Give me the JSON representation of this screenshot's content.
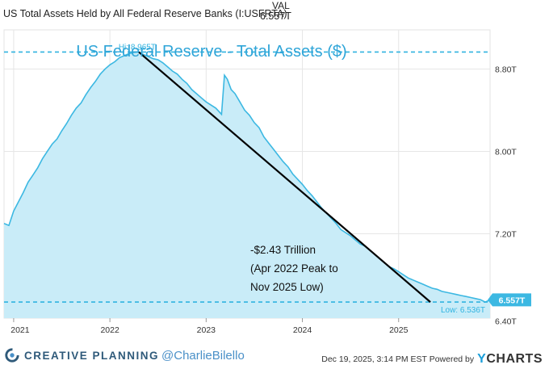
{
  "header": {
    "series_label": "US Total Assets Held by All Federal Reserve Banks (I:USFRTA)",
    "val_header": "VAL",
    "val_value": "6.557T"
  },
  "chart_data": {
    "type": "area",
    "title": "US Federal Reserve - Total Assets ($)",
    "xlabel": "",
    "ylabel": "",
    "x_ticks": [
      "2021",
      "2022",
      "2023",
      "2024",
      "2025"
    ],
    "y_ticks": [
      "6.40T",
      "7.20T",
      "8.00T",
      "8.80T"
    ],
    "xlim": [
      2020.9,
      2025.95
    ],
    "ylim": [
      6.38,
      9.18
    ],
    "hi_label": "Hi: 8.965T",
    "hi_value": 8.965,
    "low_label": "Low: 6.536T",
    "low_value": 6.536,
    "current_label": "6.557T",
    "current_value": 6.557,
    "annotation": [
      "-$2.43 Trillion",
      "(Apr 2022 Peak to",
      "Nov 2025 Low)"
    ],
    "trendline": [
      [
        2022.3,
        8.965
      ],
      [
        2025.33,
        6.536
      ]
    ],
    "series": [
      {
        "x": [
          2020.9,
          2020.95,
          2021.0,
          2021.05,
          2021.1,
          2021.15,
          2021.2,
          2021.25,
          2021.3,
          2021.35,
          2021.4,
          2021.45,
          2021.5,
          2021.55,
          2021.6,
          2021.65,
          2021.7,
          2021.75,
          2021.8,
          2021.85,
          2021.9,
          2021.95,
          2022.0,
          2022.05,
          2022.1,
          2022.15,
          2022.2,
          2022.25,
          2022.3,
          2022.35,
          2022.4,
          2022.45,
          2022.5,
          2022.55,
          2022.6,
          2022.65,
          2022.7,
          2022.75,
          2022.8,
          2022.85,
          2022.9,
          2022.95,
          2023.0,
          2023.05,
          2023.1,
          2023.13,
          2023.16,
          2023.19,
          2023.22,
          2023.26,
          2023.3,
          2023.35,
          2023.4,
          2023.45,
          2023.5,
          2023.55,
          2023.6,
          2023.65,
          2023.7,
          2023.75,
          2023.8,
          2023.85,
          2023.9,
          2023.95,
          2024.0,
          2024.05,
          2024.1,
          2024.15,
          2024.2,
          2024.25,
          2024.3,
          2024.35,
          2024.4,
          2024.45,
          2024.5,
          2024.55,
          2024.6,
          2024.65,
          2024.7,
          2024.75,
          2024.8,
          2024.85,
          2024.9,
          2024.95,
          2025.0,
          2025.05,
          2025.1,
          2025.15,
          2025.2,
          2025.25,
          2025.3,
          2025.35,
          2025.4,
          2025.45,
          2025.5,
          2025.55,
          2025.6,
          2025.65,
          2025.7,
          2025.75,
          2025.8,
          2025.85,
          2025.9,
          2025.95
        ],
        "y": [
          7.3,
          7.28,
          7.42,
          7.51,
          7.6,
          7.7,
          7.77,
          7.84,
          7.93,
          8.0,
          8.07,
          8.12,
          8.2,
          8.27,
          8.35,
          8.42,
          8.47,
          8.55,
          8.62,
          8.68,
          8.75,
          8.8,
          8.84,
          8.87,
          8.91,
          8.93,
          8.95,
          8.96,
          8.965,
          8.94,
          8.92,
          8.9,
          8.89,
          8.86,
          8.82,
          8.78,
          8.75,
          8.7,
          8.66,
          8.6,
          8.56,
          8.52,
          8.48,
          8.45,
          8.42,
          8.39,
          8.36,
          8.74,
          8.7,
          8.6,
          8.56,
          8.48,
          8.4,
          8.35,
          8.28,
          8.23,
          8.14,
          8.08,
          8.02,
          7.96,
          7.9,
          7.85,
          7.78,
          7.73,
          7.68,
          7.62,
          7.57,
          7.51,
          7.45,
          7.4,
          7.35,
          7.3,
          7.24,
          7.21,
          7.18,
          7.14,
          7.1,
          7.08,
          7.04,
          7.0,
          6.96,
          6.92,
          6.88,
          6.86,
          6.83,
          6.8,
          6.77,
          6.75,
          6.73,
          6.71,
          6.69,
          6.67,
          6.66,
          6.64,
          6.63,
          6.62,
          6.61,
          6.6,
          6.59,
          6.58,
          6.57,
          6.56,
          6.536,
          6.557
        ]
      }
    ]
  },
  "footer": {
    "brand": "CREATIVE PLANNING",
    "handle": "@CharlieBilello",
    "timestamp": "Dec 19, 2025, 3:14 PM EST Powered by",
    "ycharts_y": "Y",
    "ycharts_rest": "CHARTS"
  },
  "colors": {
    "line": "#3cb8e2",
    "fill": "#c9ecf8",
    "dash": "#31b3e0",
    "title": "#2fa5d8",
    "trend": "#000000"
  }
}
